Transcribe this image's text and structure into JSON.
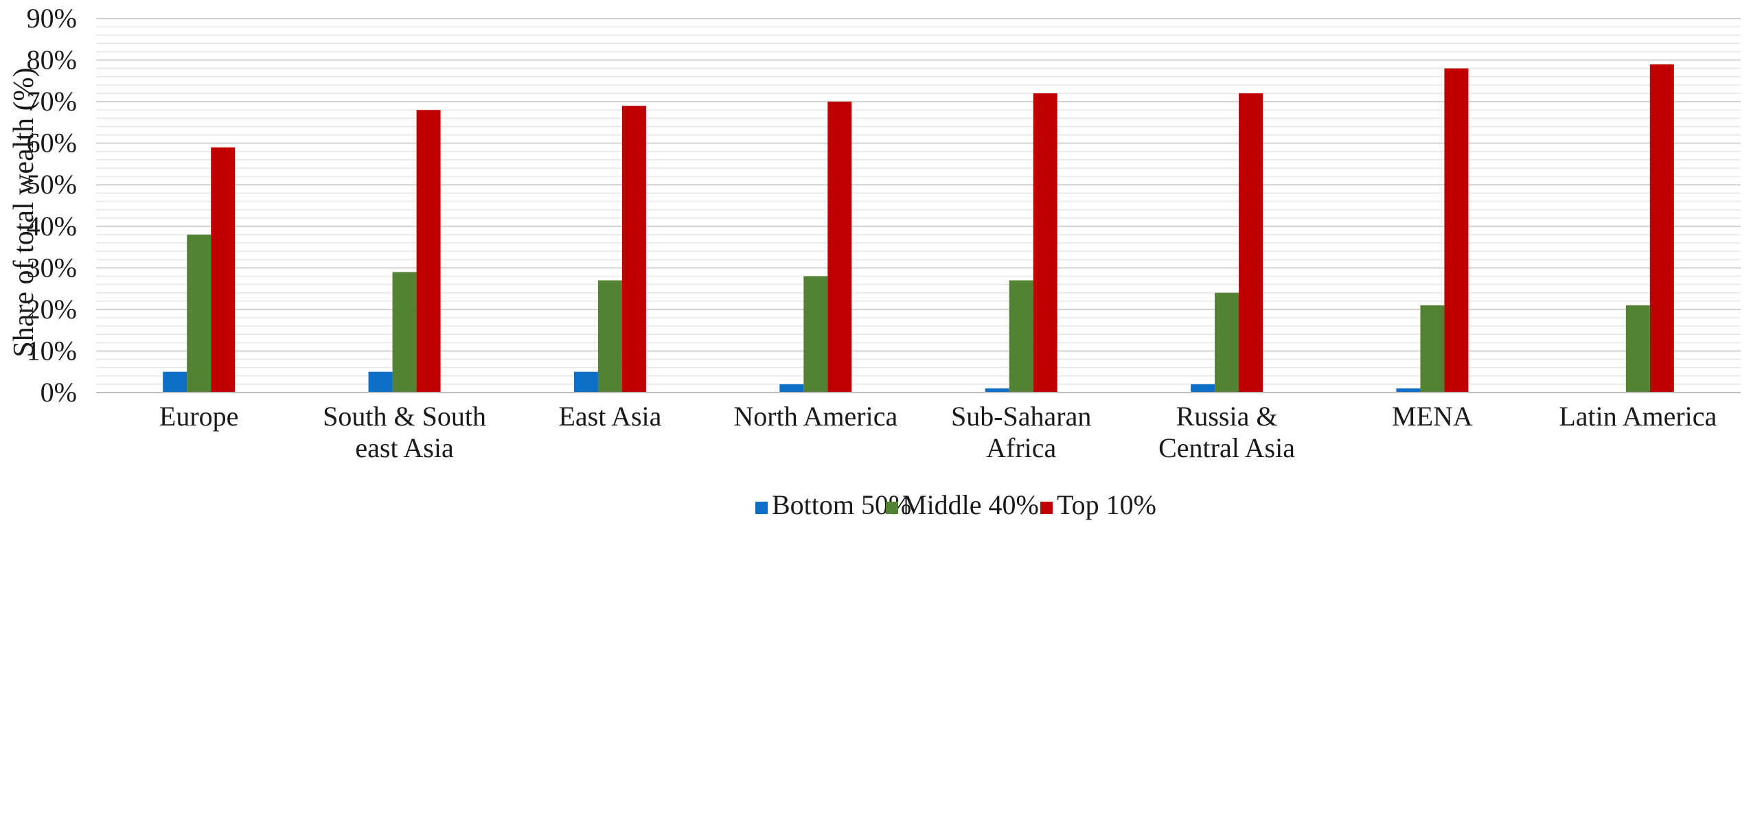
{
  "chart_data": {
    "type": "bar",
    "title": "",
    "ylabel": "Share of total wealth (%)",
    "xlabel": "",
    "ylim": [
      0,
      90
    ],
    "yticks": [
      0,
      10,
      20,
      30,
      40,
      50,
      60,
      70,
      80,
      90
    ],
    "ytick_labels": [
      "0%",
      "10%",
      "20%",
      "30%",
      "40%",
      "50%",
      "60%",
      "70%",
      "80%",
      "90%"
    ],
    "grid": true,
    "legend_position": "bottom",
    "categories": [
      [
        "Europe"
      ],
      [
        "South & South",
        "east Asia"
      ],
      [
        "East Asia"
      ],
      [
        "North America"
      ],
      [
        "Sub-Saharan",
        "Africa"
      ],
      [
        "Russia &",
        "Central Asia"
      ],
      [
        "MENA"
      ],
      [
        "Latin America"
      ]
    ],
    "series": [
      {
        "name": "Bottom 50%",
        "color": "#0f6fc6",
        "values": [
          5,
          5,
          5,
          2,
          1,
          2,
          1,
          0
        ]
      },
      {
        "name": "Middle 40%",
        "color": "#548235",
        "values": [
          38,
          29,
          27,
          28,
          27,
          24,
          21,
          21
        ]
      },
      {
        "name": "Top 10%",
        "color": "#c00000",
        "values": [
          59,
          68,
          69,
          70,
          72,
          72,
          78,
          79
        ]
      }
    ]
  }
}
